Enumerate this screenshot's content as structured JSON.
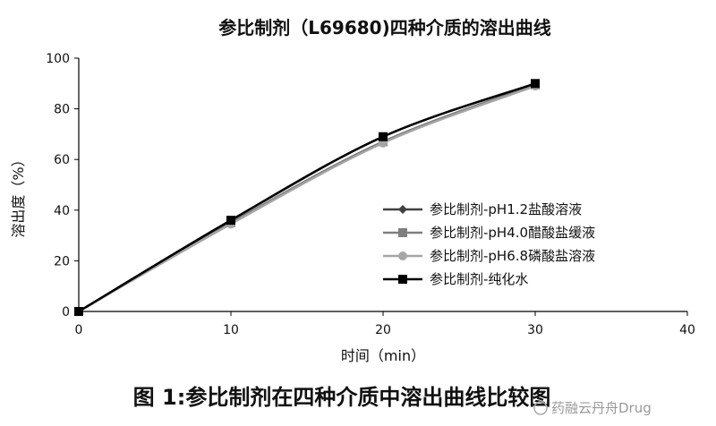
{
  "chart_data": {
    "type": "line",
    "title": "参比制剂（L69680)四种介质的溶出曲线",
    "xlabel": "时间（min）",
    "ylabel": "溶出度（%）",
    "xlim": [
      0,
      40
    ],
    "ylim": [
      0,
      100
    ],
    "xticks": [
      "0",
      "10",
      "20",
      "30",
      "40"
    ],
    "yticks": [
      "0",
      "20",
      "40",
      "60",
      "80",
      "100"
    ],
    "grid": false,
    "legend_position": "center-right",
    "x": [
      0,
      10,
      20,
      30
    ],
    "series": [
      {
        "name": "参比制剂-pH1.2盐酸溶液",
        "values": [
          0,
          35,
          67,
          89.5
        ],
        "color": "#404040",
        "marker": "diamond"
      },
      {
        "name": "参比制剂-pH4.0醋酸盐缓液",
        "values": [
          0,
          35,
          67,
          89.5
        ],
        "color": "#7f7f7f",
        "marker": "square"
      },
      {
        "name": "参比制剂-pH6.8磷酸盐溶液",
        "values": [
          0,
          34.5,
          66.5,
          89
        ],
        "color": "#a6a6a6",
        "marker": "circle"
      },
      {
        "name": "参比制剂-纯化水",
        "values": [
          0,
          36,
          69,
          90
        ],
        "color": "#000000",
        "marker": "square"
      }
    ]
  },
  "caption": "图 1:参比制剂在四种介质中溶出曲线比较图",
  "watermark": "药融云丹舟Drug"
}
